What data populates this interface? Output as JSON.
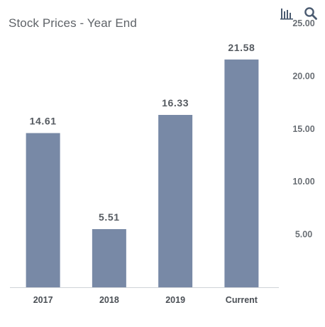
{
  "header": {
    "title": "Stock Prices - Year End"
  },
  "toolbar": {
    "buttons": [
      {
        "icon": "bar-chart-icon"
      },
      {
        "icon": "search-icon"
      }
    ]
  },
  "colors": {
    "bar": "#7889a6",
    "axis": "#cfd3d8",
    "icon": "#4a5a70"
  },
  "chart_data": {
    "type": "bar",
    "title": "Stock Prices - Year End",
    "categories": [
      "2017",
      "2018",
      "2019",
      "Current"
    ],
    "values": [
      14.61,
      5.51,
      16.33,
      21.58
    ],
    "value_labels": [
      "14.61",
      "5.51",
      "16.33",
      "21.58"
    ],
    "y_ticks": [
      5,
      10,
      15,
      20,
      25
    ],
    "y_tick_labels": [
      "5.00",
      "10.00",
      "15.00",
      "20.00",
      "25.00"
    ],
    "ylim": [
      0,
      25
    ],
    "y_axis_side": "right",
    "grid": false,
    "xlabel": "",
    "ylabel": ""
  }
}
